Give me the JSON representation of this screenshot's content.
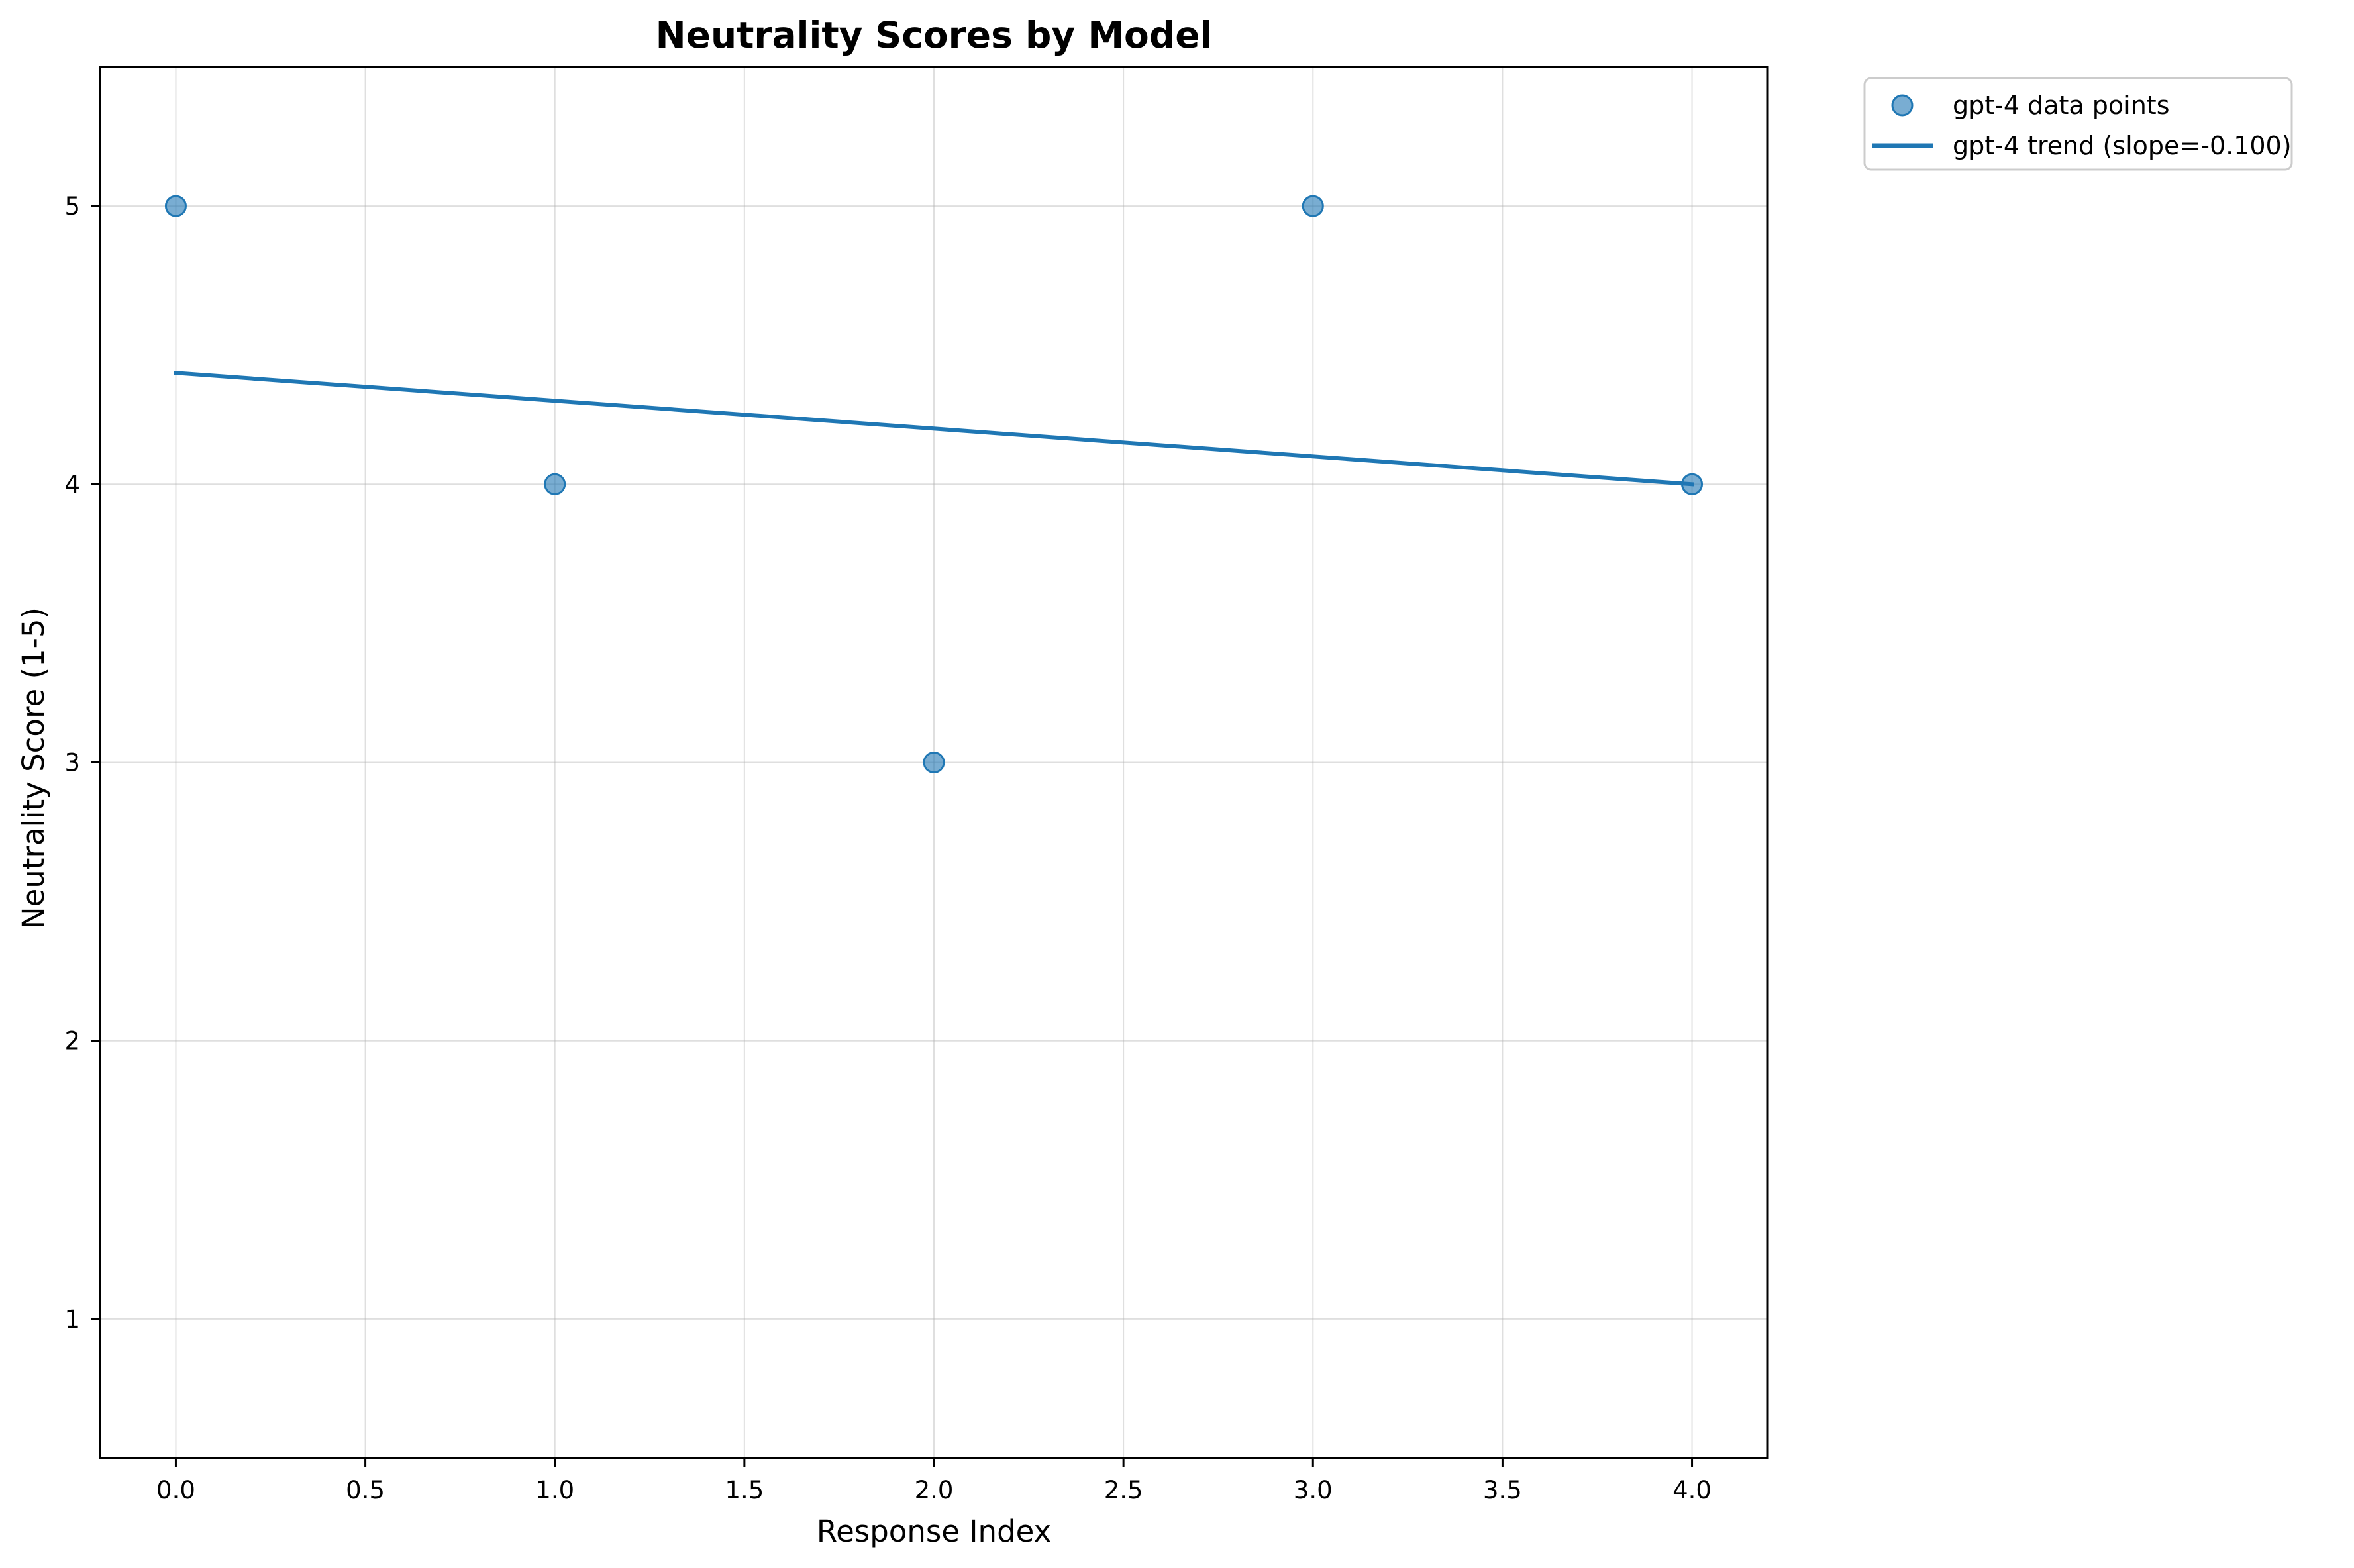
{
  "chart_data": {
    "type": "scatter",
    "title": "Neutrality Scores by Model",
    "xlabel": "Response Index",
    "ylabel": "Neutrality Score (1-5)",
    "xlim": [
      -0.2,
      4.2
    ],
    "ylim": [
      0.5,
      5.5
    ],
    "x_ticks": [
      0.0,
      0.5,
      1.0,
      1.5,
      2.0,
      2.5,
      3.0,
      3.5,
      4.0
    ],
    "x_tick_labels": [
      "0.0",
      "0.5",
      "1.0",
      "1.5",
      "2.0",
      "2.5",
      "3.0",
      "3.5",
      "4.0"
    ],
    "y_ticks": [
      1,
      2,
      3,
      4,
      5
    ],
    "y_tick_labels": [
      "1",
      "2",
      "3",
      "4",
      "5"
    ],
    "grid": true,
    "legend_position": "outside top-right",
    "series": [
      {
        "name": "gpt-4 data points",
        "kind": "scatter",
        "color": "#1f77b4",
        "x": [
          0,
          1,
          2,
          3,
          4
        ],
        "y": [
          5,
          4,
          3,
          5,
          4
        ]
      },
      {
        "name": "gpt-4 trend (slope=-0.100)",
        "kind": "line",
        "color": "#1f77b4",
        "x": [
          0,
          4
        ],
        "y": [
          4.4,
          4.0
        ]
      }
    ]
  }
}
